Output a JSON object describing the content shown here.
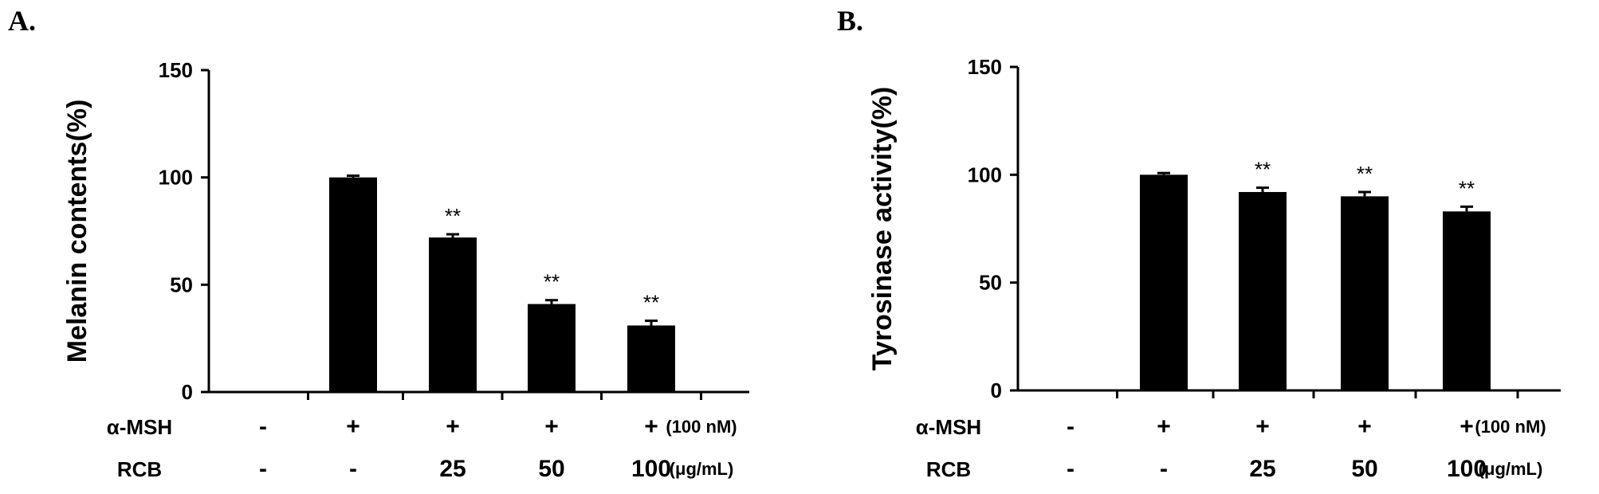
{
  "chart_data": [
    {
      "type": "bar",
      "panel": "A.",
      "ylabel": "Melanin contents(%)",
      "ylim": [
        0,
        150
      ],
      "yticks": [
        0,
        50,
        100,
        150
      ],
      "groups": [
        "",
        "",
        "",
        "",
        ""
      ],
      "values": [
        null,
        100,
        72,
        41,
        31
      ],
      "errors": [
        null,
        0.8,
        1.5,
        1.8,
        2.2
      ],
      "significance": [
        "",
        "",
        "**",
        "**",
        "**"
      ],
      "conditions": [
        {
          "name": "α-MSH",
          "values": [
            "-",
            "+",
            "+",
            "+",
            "+"
          ],
          "unit": "(100 nM)"
        },
        {
          "name": "RCB",
          "values": [
            "-",
            "-",
            "25",
            "50",
            "100"
          ],
          "unit": "(μg/mL)"
        }
      ]
    },
    {
      "type": "bar",
      "panel": "B.",
      "ylabel": "Tyrosinase activity(%)",
      "ylim": [
        0,
        150
      ],
      "yticks": [
        0,
        50,
        100,
        150
      ],
      "groups": [
        "",
        "",
        "",
        "",
        ""
      ],
      "values": [
        null,
        100,
        92,
        90,
        83
      ],
      "errors": [
        null,
        0.8,
        2.0,
        2.0,
        2.2
      ],
      "significance": [
        "",
        "",
        "**",
        "**",
        "**"
      ],
      "conditions": [
        {
          "name": "α-MSH",
          "values": [
            "-",
            "+",
            "+",
            "+",
            "+"
          ],
          "unit": "(100 nM)"
        },
        {
          "name": "RCB",
          "values": [
            "-",
            "-",
            "25",
            "50",
            "100"
          ],
          "unit": "(μg/mL)"
        }
      ]
    }
  ]
}
